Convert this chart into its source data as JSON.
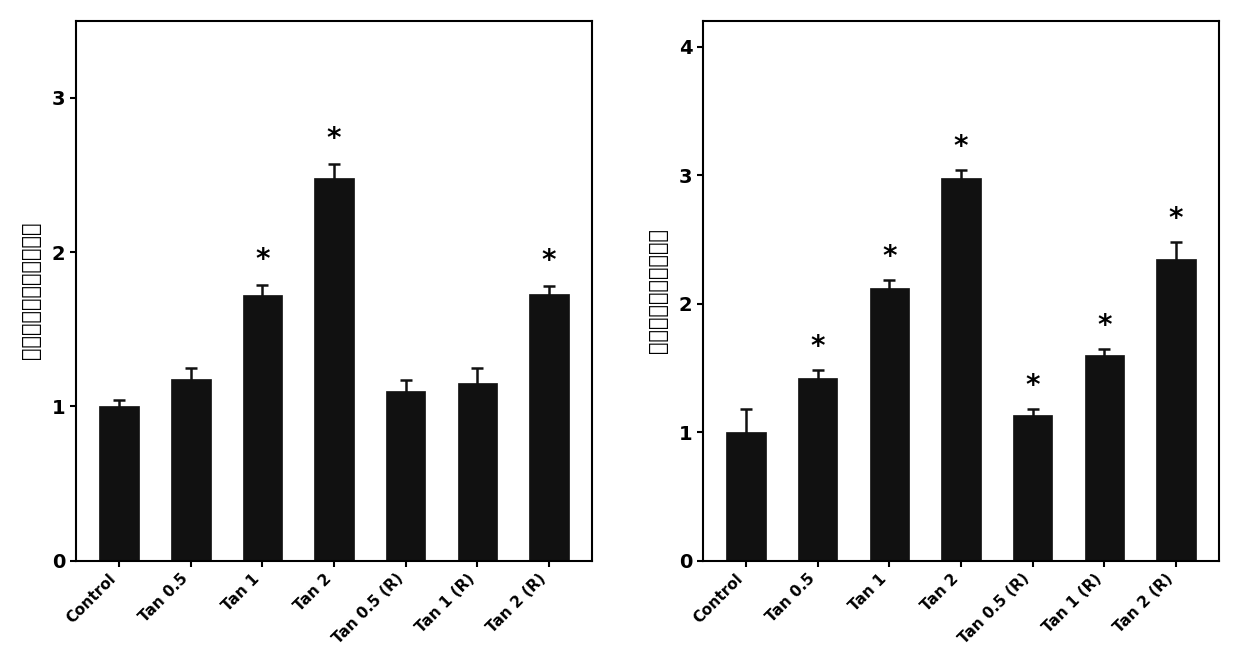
{
  "left_chart": {
    "ylabel": "醌氧化还原酶相对酶活性",
    "categories": [
      "Control",
      "Tan 0.5",
      "Tan 1",
      "Tan 2",
      "Tan 0.5 (R)",
      "Tan 1 (R)",
      "Tan 2 (R)"
    ],
    "values": [
      1.0,
      1.18,
      1.72,
      2.48,
      1.1,
      1.15,
      1.73
    ],
    "errors": [
      0.04,
      0.07,
      0.07,
      0.09,
      0.07,
      0.1,
      0.05
    ],
    "significance": [
      false,
      false,
      true,
      true,
      false,
      false,
      true
    ],
    "ylim": [
      0,
      3.5
    ],
    "yticks": [
      0,
      1,
      2,
      3
    ]
  },
  "right_chart": {
    "ylabel": "过氧化氢酶相对酶活性",
    "categories": [
      "Control",
      "Tan 0.5",
      "Tan 1",
      "Tan 2",
      "Tan 0.5 (R)",
      "Tan 1 (R)",
      "Tan 2 (R)"
    ],
    "values": [
      1.0,
      1.42,
      2.12,
      2.98,
      1.13,
      1.6,
      2.35
    ],
    "errors": [
      0.18,
      0.06,
      0.06,
      0.06,
      0.05,
      0.05,
      0.13
    ],
    "significance": [
      false,
      true,
      true,
      true,
      true,
      true,
      true
    ],
    "ylim": [
      0,
      4.2
    ],
    "yticks": [
      0,
      1,
      2,
      3,
      4
    ]
  },
  "bar_color": "#111111",
  "bar_width": 0.55,
  "error_color": "#111111",
  "star_fontsize": 20,
  "tick_fontsize": 11,
  "label_fontsize": 15,
  "background_color": "#ffffff",
  "figure_bg": "#ffffff"
}
